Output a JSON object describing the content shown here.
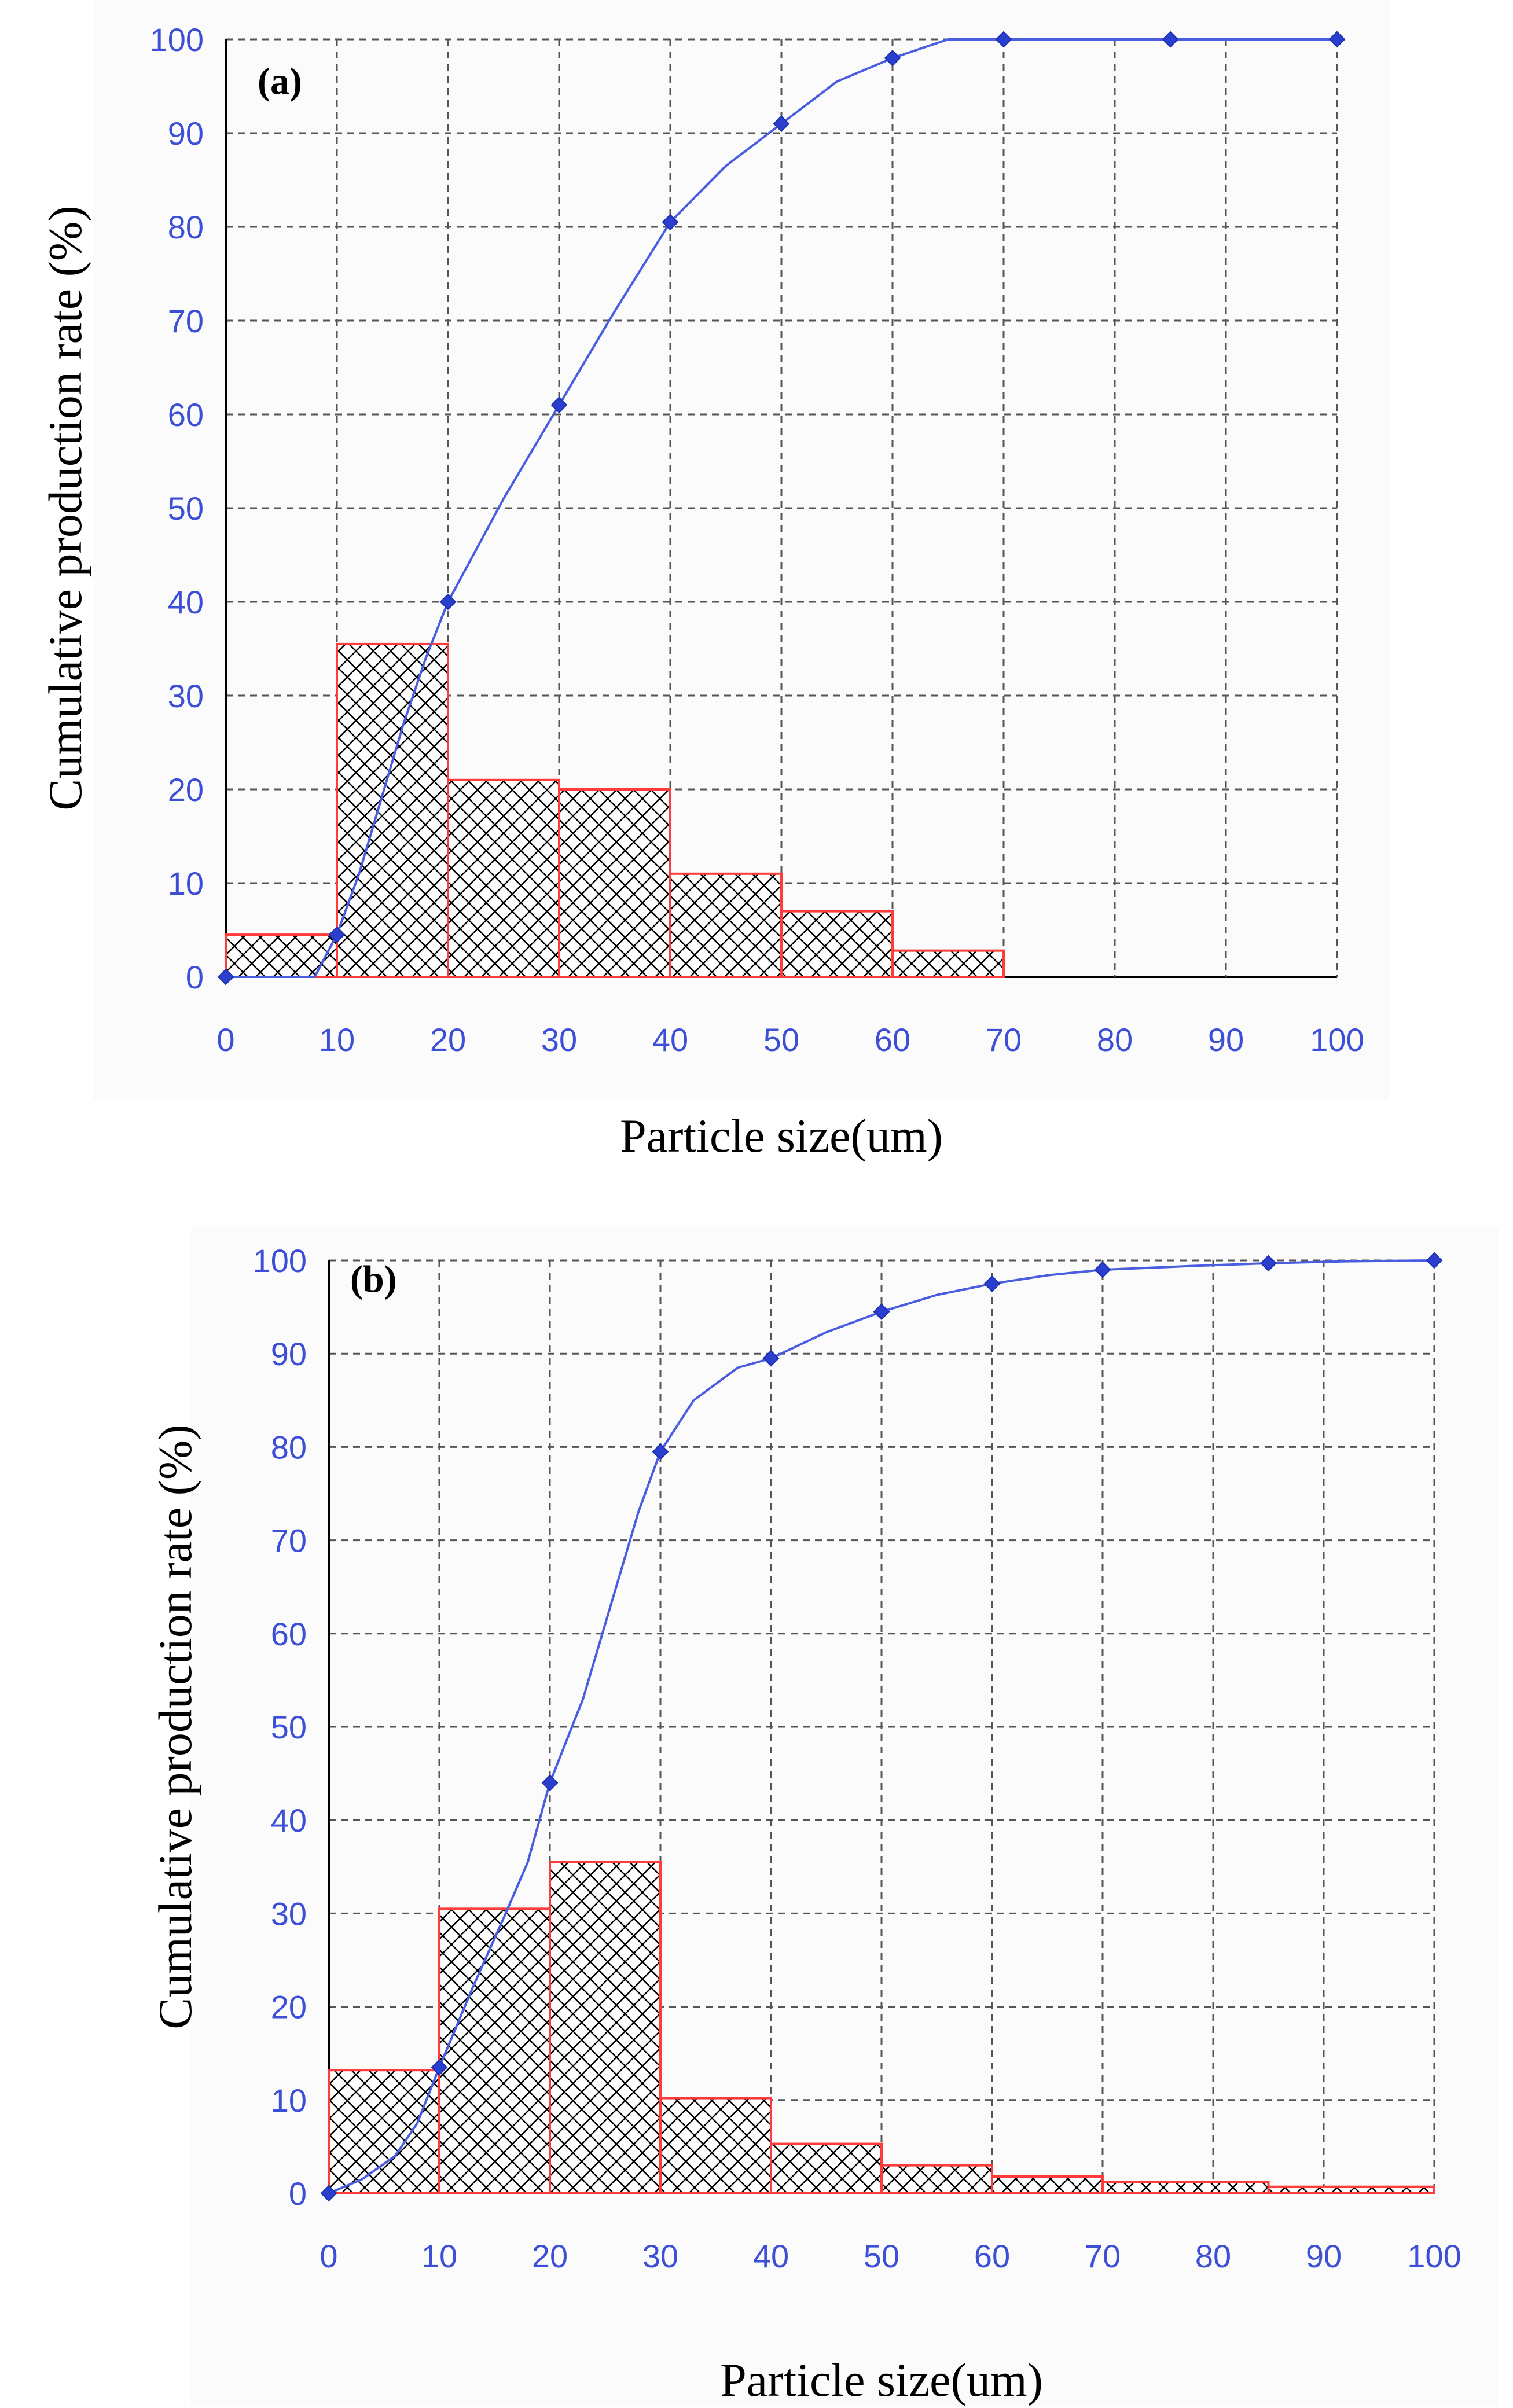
{
  "colors": {
    "curve": "#4a5de0",
    "bar_outline": "#ff3b3b",
    "hatch": "#000000",
    "grid": "#555555",
    "tick_text": "#3d4fd6",
    "panel_bg": "#fbfbfb"
  },
  "chart_data": [
    {
      "type": "bar",
      "panel_label": "(a)",
      "xlabel": "Particle size(um)",
      "ylabel": "Cumulative production rate (%)",
      "xlim": [
        0,
        100
      ],
      "ylim": [
        0,
        100
      ],
      "x_ticks": [
        "0",
        "10",
        "20",
        "30",
        "40",
        "50",
        "60",
        "70",
        "80",
        "90",
        "100"
      ],
      "y_ticks": [
        "0",
        "10",
        "20",
        "30",
        "40",
        "50",
        "60",
        "70",
        "80",
        "90",
        "100"
      ],
      "grid": true,
      "bins": [
        {
          "from": 0,
          "to": 10,
          "value": 4.5
        },
        {
          "from": 10,
          "to": 20,
          "value": 35.5
        },
        {
          "from": 20,
          "to": 30,
          "value": 21
        },
        {
          "from": 30,
          "to": 40,
          "value": 20
        },
        {
          "from": 40,
          "to": 50,
          "value": 11
        },
        {
          "from": 50,
          "to": 60,
          "value": 7
        },
        {
          "from": 60,
          "to": 70,
          "value": 2.8
        },
        {
          "from": 70,
          "to": 100,
          "value": 0
        }
      ],
      "cumulative": {
        "points": [
          [
            0,
            0
          ],
          [
            10,
            4.5
          ],
          [
            20,
            40
          ],
          [
            30,
            61
          ],
          [
            40,
            80.5
          ],
          [
            50,
            91
          ],
          [
            60,
            98
          ],
          [
            70,
            100
          ],
          [
            85,
            100
          ],
          [
            100,
            100
          ]
        ],
        "curve": [
          [
            0,
            0
          ],
          [
            8,
            0
          ],
          [
            10,
            4.5
          ],
          [
            12,
            11
          ],
          [
            14,
            19
          ],
          [
            16,
            27
          ],
          [
            18,
            34
          ],
          [
            20,
            40
          ],
          [
            25,
            51
          ],
          [
            30,
            61
          ],
          [
            35,
            71
          ],
          [
            40,
            80.5
          ],
          [
            45,
            86.5
          ],
          [
            50,
            91
          ],
          [
            55,
            95.5
          ],
          [
            60,
            98
          ],
          [
            65,
            100
          ],
          [
            70,
            100
          ],
          [
            85,
            100
          ],
          [
            100,
            100
          ]
        ]
      }
    },
    {
      "type": "bar",
      "panel_label": "(b)",
      "xlabel": "Particle size(um)",
      "ylabel": "Cumulative production rate (%)",
      "xlim": [
        0,
        100
      ],
      "ylim": [
        0,
        100
      ],
      "x_ticks": [
        "0",
        "10",
        "20",
        "30",
        "40",
        "50",
        "60",
        "70",
        "80",
        "90",
        "100"
      ],
      "y_ticks": [
        "0",
        "10",
        "20",
        "30",
        "40",
        "50",
        "60",
        "70",
        "80",
        "90",
        "100"
      ],
      "grid": true,
      "bins": [
        {
          "from": 0,
          "to": 10,
          "value": 13.2
        },
        {
          "from": 10,
          "to": 20,
          "value": 30.5
        },
        {
          "from": 20,
          "to": 30,
          "value": 35.5
        },
        {
          "from": 30,
          "to": 40,
          "value": 10.2
        },
        {
          "from": 40,
          "to": 50,
          "value": 5.3
        },
        {
          "from": 50,
          "to": 60,
          "value": 3
        },
        {
          "from": 60,
          "to": 70,
          "value": 1.8
        },
        {
          "from": 70,
          "to": 85,
          "value": 1.2
        },
        {
          "from": 85,
          "to": 100,
          "value": 0.7
        }
      ],
      "cumulative": {
        "points": [
          [
            0,
            0
          ],
          [
            10,
            13.5
          ],
          [
            20,
            44
          ],
          [
            30,
            79.5
          ],
          [
            40,
            89.5
          ],
          [
            50,
            94.5
          ],
          [
            60,
            97.5
          ],
          [
            70,
            99
          ],
          [
            85,
            99.7
          ],
          [
            100,
            100
          ]
        ],
        "curve": [
          [
            0,
            0
          ],
          [
            3,
            1.5
          ],
          [
            6,
            4
          ],
          [
            8,
            7.5
          ],
          [
            10,
            13.5
          ],
          [
            13,
            22
          ],
          [
            16,
            30
          ],
          [
            18,
            35.5
          ],
          [
            20,
            44
          ],
          [
            23,
            53
          ],
          [
            26,
            65
          ],
          [
            28,
            73
          ],
          [
            30,
            79.5
          ],
          [
            33,
            85
          ],
          [
            37,
            88.5
          ],
          [
            40,
            89.5
          ],
          [
            45,
            92.3
          ],
          [
            50,
            94.5
          ],
          [
            55,
            96.3
          ],
          [
            60,
            97.5
          ],
          [
            65,
            98.4
          ],
          [
            70,
            99
          ],
          [
            78,
            99.4
          ],
          [
            85,
            99.7
          ],
          [
            92,
            99.9
          ],
          [
            100,
            100
          ]
        ]
      }
    }
  ]
}
